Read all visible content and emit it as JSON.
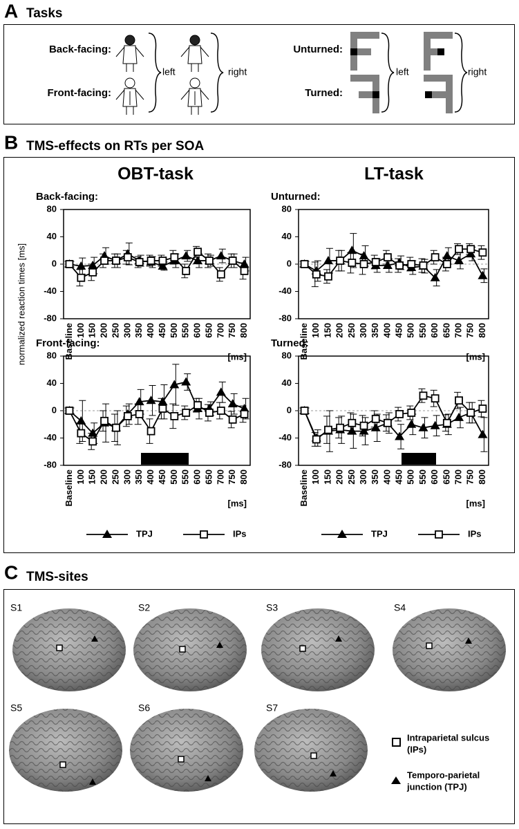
{
  "panels": {
    "a": {
      "letter": "A",
      "title": "Tasks"
    },
    "b": {
      "letter": "B",
      "title": "TMS-effects on RTs per SOA"
    },
    "c": {
      "letter": "C",
      "title": "TMS-sites"
    }
  },
  "tasks": {
    "back_facing": "Back-facing:",
    "front_facing": "Front-facing:",
    "obt_left": "left",
    "obt_right": "right",
    "unturned": "Unturned:",
    "turned": "Turned:",
    "lt_left": "left",
    "lt_right": "right"
  },
  "column_titles": [
    "OBT-task",
    "LT-task"
  ],
  "y_label": "normalized reaction times [ms]",
  "x_unit": "[ms]",
  "chart_data": [
    {
      "type": "line",
      "title": "Back-facing:",
      "categories": [
        "Baseline",
        "100",
        "150",
        "200",
        "250",
        "300",
        "350",
        "400",
        "450",
        "500",
        "550",
        "600",
        "650",
        "700",
        "750",
        "800"
      ],
      "ylim": [
        -80,
        80
      ],
      "yticks": [
        -80,
        -40,
        0,
        40,
        80
      ],
      "series": [
        {
          "name": "TPJ",
          "color": "#000000",
          "marker": "triangle",
          "values": [
            0,
            -3,
            -2,
            12,
            5,
            15,
            5,
            3,
            -3,
            5,
            12,
            5,
            5,
            12,
            5,
            0
          ],
          "errors": [
            4,
            12,
            12,
            12,
            10,
            16,
            8,
            8,
            6,
            10,
            8,
            10,
            8,
            10,
            10,
            10
          ]
        },
        {
          "name": "IPs",
          "color": "#000000",
          "marker": "square",
          "values": [
            0,
            -20,
            -12,
            5,
            5,
            10,
            3,
            5,
            5,
            10,
            -10,
            18,
            5,
            -15,
            5,
            -10
          ],
          "errors": [
            4,
            12,
            12,
            10,
            10,
            10,
            8,
            8,
            8,
            10,
            10,
            8,
            10,
            10,
            10,
            12
          ]
        }
      ]
    },
    {
      "type": "line",
      "title": "Unturned:",
      "categories": [
        "Baseline",
        "100",
        "150",
        "200",
        "250",
        "300",
        "350",
        "400",
        "450",
        "500",
        "550",
        "600",
        "650",
        "700",
        "750",
        "800"
      ],
      "ylim": [
        -80,
        80
      ],
      "yticks": [
        -80,
        -40,
        0,
        40,
        80
      ],
      "series": [
        {
          "name": "TPJ",
          "color": "#000000",
          "marker": "triangle",
          "values": [
            0,
            -10,
            5,
            5,
            20,
            12,
            -2,
            -2,
            2,
            -5,
            -3,
            -20,
            12,
            5,
            15,
            -17
          ],
          "errors": [
            4,
            15,
            18,
            15,
            25,
            15,
            10,
            10,
            10,
            10,
            10,
            12,
            12,
            12,
            10,
            10
          ]
        },
        {
          "name": "IPs",
          "color": "#000000",
          "marker": "square",
          "values": [
            0,
            -15,
            -18,
            5,
            2,
            0,
            3,
            10,
            -2,
            0,
            -2,
            10,
            0,
            22,
            22,
            17
          ],
          "errors": [
            4,
            18,
            10,
            15,
            15,
            15,
            10,
            10,
            10,
            10,
            10,
            10,
            10,
            8,
            8,
            10
          ]
        }
      ]
    },
    {
      "type": "line",
      "title": "Front-facing:",
      "categories": [
        "Baseline",
        "100",
        "150",
        "200",
        "250",
        "300",
        "350",
        "400",
        "450",
        "500",
        "550",
        "600",
        "650",
        "700",
        "750",
        "800"
      ],
      "ylim": [
        -80,
        80
      ],
      "yticks": [
        -80,
        -40,
        0,
        40,
        80
      ],
      "series": [
        {
          "name": "TPJ",
          "color": "#000000",
          "marker": "triangle",
          "values": [
            0,
            -15,
            -33,
            -18,
            -25,
            -5,
            13,
            15,
            13,
            38,
            42,
            3,
            3,
            27,
            10,
            3
          ],
          "errors": [
            4,
            30,
            15,
            28,
            25,
            15,
            18,
            22,
            25,
            30,
            12,
            15,
            10,
            15,
            15,
            15
          ]
        },
        {
          "name": "IPs",
          "color": "#000000",
          "marker": "square",
          "values": [
            0,
            -33,
            -45,
            -15,
            -25,
            -8,
            -5,
            -30,
            3,
            -8,
            -3,
            8,
            -3,
            0,
            -13,
            -5
          ],
          "errors": [
            4,
            15,
            12,
            15,
            20,
            15,
            15,
            18,
            15,
            18,
            10,
            10,
            12,
            12,
            12,
            12
          ]
        }
      ]
    },
    {
      "type": "line",
      "title": "Turned:",
      "categories": [
        "Baseline",
        "100",
        "150",
        "200",
        "250",
        "300",
        "350",
        "400",
        "450",
        "500",
        "550",
        "600",
        "650",
        "700",
        "750",
        "800"
      ],
      "ylim": [
        -80,
        80
      ],
      "yticks": [
        -80,
        -40,
        0,
        40,
        80
      ],
      "series": [
        {
          "name": "TPJ",
          "color": "#000000",
          "marker": "triangle",
          "values": [
            0,
            -40,
            -30,
            -28,
            -30,
            -30,
            -25,
            -18,
            -38,
            -20,
            -25,
            -22,
            -20,
            -10,
            -3,
            -35
          ],
          "errors": [
            4,
            12,
            30,
            20,
            25,
            20,
            20,
            15,
            18,
            15,
            15,
            15,
            15,
            15,
            15,
            25
          ]
        },
        {
          "name": "IPs",
          "color": "#000000",
          "marker": "square",
          "values": [
            0,
            -42,
            -28,
            -25,
            -18,
            -22,
            -12,
            -18,
            -5,
            -3,
            22,
            18,
            -18,
            15,
            -3,
            3
          ],
          "errors": [
            4,
            10,
            20,
            15,
            15,
            15,
            12,
            12,
            10,
            10,
            10,
            12,
            12,
            12,
            15,
            12
          ]
        }
      ]
    }
  ],
  "sites": [
    "S1",
    "S2",
    "S3",
    "S4",
    "S5",
    "S6",
    "S7"
  ],
  "site_legend": {
    "ips": [
      "Intraparietal sulcus",
      "(IPs)"
    ],
    "tpj": [
      "Temporo-parietal",
      "junction (TPJ)"
    ]
  }
}
